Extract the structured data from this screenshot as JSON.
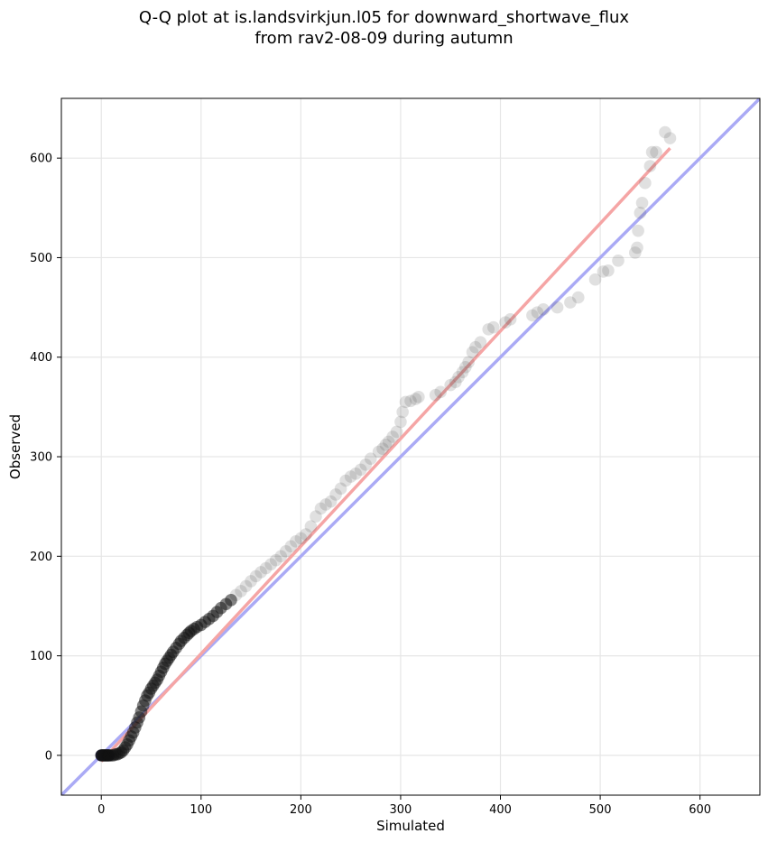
{
  "chart_data": {
    "type": "scatter",
    "title_line1": "Q-Q plot at is.landsvirkjun.l05 for downward_shortwave_flux",
    "title_line2": "from rav2-08-09 during autumn",
    "xlabel": "Simulated",
    "ylabel": "Observed",
    "xlim": [
      -40,
      660
    ],
    "ylim": [
      -40,
      660
    ],
    "xticks": [
      0,
      100,
      200,
      300,
      400,
      500,
      600
    ],
    "yticks": [
      0,
      100,
      200,
      300,
      400,
      500,
      600
    ],
    "grid": true,
    "colors": {
      "points": "#555555",
      "one_to_one_line": "#aaaaf5",
      "fit_line": "#f5a5a5",
      "zero_cluster": "#000033"
    },
    "series": [
      {
        "type": "scatter",
        "x": [
          0,
          1,
          2,
          3,
          4,
          5,
          6,
          7,
          8,
          10,
          12,
          14,
          16,
          18,
          20,
          22,
          24,
          26,
          28,
          30,
          32,
          34,
          36,
          38,
          40,
          42,
          44,
          46,
          48,
          50,
          52,
          54,
          56,
          58,
          60,
          62,
          64,
          66,
          68,
          70,
          72,
          75,
          78,
          80,
          83,
          86,
          88,
          90,
          93,
          96,
          100,
          104,
          108,
          112,
          116,
          120,
          125,
          130,
          135,
          140,
          145,
          150,
          155,
          160,
          165,
          170,
          175,
          180,
          185,
          190,
          195,
          200,
          205,
          210,
          215,
          220,
          225,
          230,
          235,
          240,
          245,
          250,
          255,
          260,
          265,
          270,
          278,
          282,
          285,
          288,
          292,
          296,
          300,
          302,
          305,
          310,
          315,
          318,
          335,
          340,
          350,
          355,
          358,
          362,
          365,
          368,
          372,
          375,
          380,
          388,
          393,
          405,
          410,
          432,
          437,
          443,
          457,
          470,
          478,
          495,
          503,
          508,
          518,
          535,
          537,
          538,
          540,
          542,
          545,
          550,
          552,
          556,
          565,
          570
        ],
        "y": [
          0,
          0,
          0,
          0,
          0,
          0,
          0,
          0,
          0,
          0,
          0,
          1,
          1,
          2,
          3,
          5,
          8,
          11,
          15,
          19,
          23,
          28,
          33,
          38,
          44,
          50,
          55,
          60,
          63,
          67,
          70,
          73,
          76,
          80,
          84,
          88,
          92,
          95,
          98,
          101,
          104,
          108,
          112,
          115,
          118,
          121,
          123,
          125,
          127,
          129,
          131,
          134,
          137,
          140,
          144,
          148,
          152,
          156,
          161,
          165,
          170,
          175,
          180,
          184,
          188,
          192,
          196,
          200,
          205,
          210,
          215,
          218,
          222,
          230,
          240,
          248,
          252,
          255,
          262,
          268,
          276,
          280,
          283,
          287,
          292,
          298,
          305,
          308,
          312,
          315,
          320,
          325,
          335,
          345,
          355,
          356,
          358,
          360,
          362,
          365,
          372,
          375,
          380,
          385,
          390,
          395,
          405,
          410,
          415,
          428,
          430,
          435,
          438,
          442,
          445,
          448,
          450,
          455,
          460,
          478,
          486,
          487,
          497,
          505,
          510,
          527,
          545,
          555,
          575,
          592,
          606,
          606,
          626,
          620
        ],
        "name": ""
      }
    ],
    "fit_line": {
      "x": [
        0,
        570
      ],
      "y": [
        -6,
        610
      ]
    },
    "one_to_one_line": {
      "x": [
        -40,
        660
      ],
      "y": [
        -40,
        660
      ]
    }
  }
}
